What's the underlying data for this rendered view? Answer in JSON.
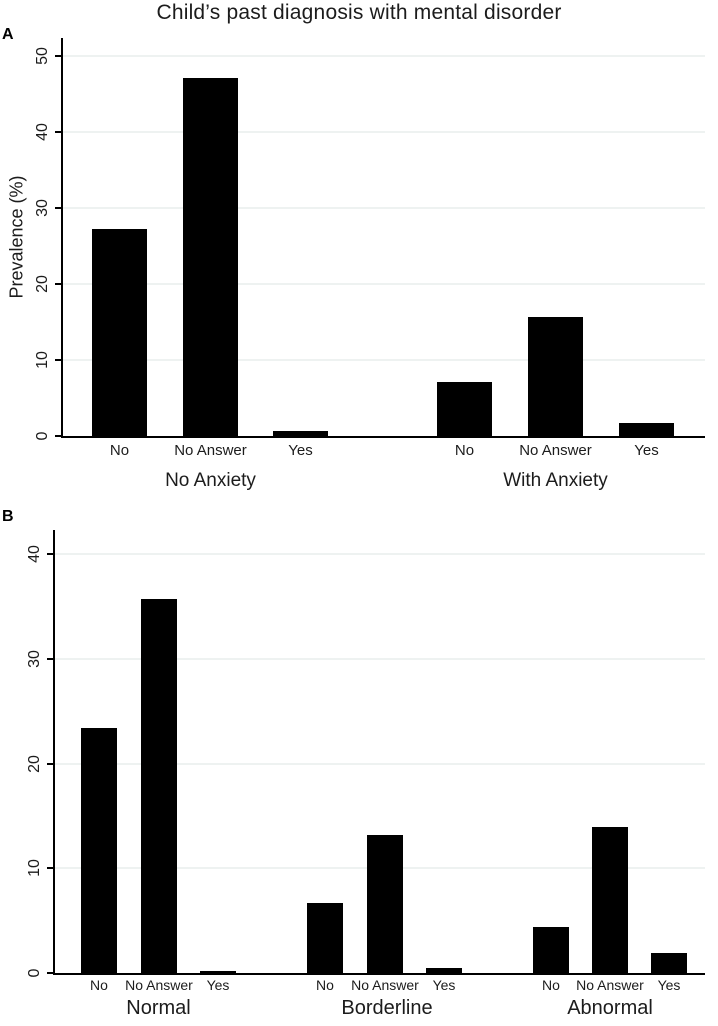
{
  "figure": {
    "title": "Child’s past diagnosis with mental disorder",
    "background_color": "#ffffff",
    "bar_color": "#000000",
    "gridline_color": "#eef2f1"
  },
  "chart_data": [
    {
      "type": "bar",
      "panel_label": "A",
      "title": "Child’s past diagnosis with mental disorder",
      "xlabel": "",
      "ylabel": "Prevalence (%)",
      "ylim": [
        0,
        50
      ],
      "yticks": [
        0,
        10,
        20,
        30,
        40,
        50
      ],
      "grid": true,
      "legend": "none",
      "bar_color": "#000000",
      "categories": [
        "No",
        "No Answer",
        "Yes"
      ],
      "groups": [
        {
          "label": "No Anxiety",
          "values": [
            27.3,
            47.1,
            0.6
          ]
        },
        {
          "label": "With Anxiety",
          "values": [
            7.1,
            15.7,
            1.7
          ]
        }
      ]
    },
    {
      "type": "bar",
      "panel_label": "B",
      "title": "",
      "xlabel": "",
      "ylabel": "",
      "ylim": [
        0,
        40
      ],
      "yticks": [
        0,
        10,
        20,
        30,
        40
      ],
      "grid": true,
      "legend": "none",
      "bar_color": "#000000",
      "categories": [
        "No",
        "No Answer",
        "Yes"
      ],
      "groups": [
        {
          "label": "Normal",
          "values": [
            23.4,
            35.7,
            0.2
          ]
        },
        {
          "label": "Borderline",
          "values": [
            6.7,
            13.2,
            0.5
          ]
        },
        {
          "label": "Abnormal",
          "values": [
            4.4,
            13.9,
            1.9
          ]
        }
      ]
    }
  ]
}
